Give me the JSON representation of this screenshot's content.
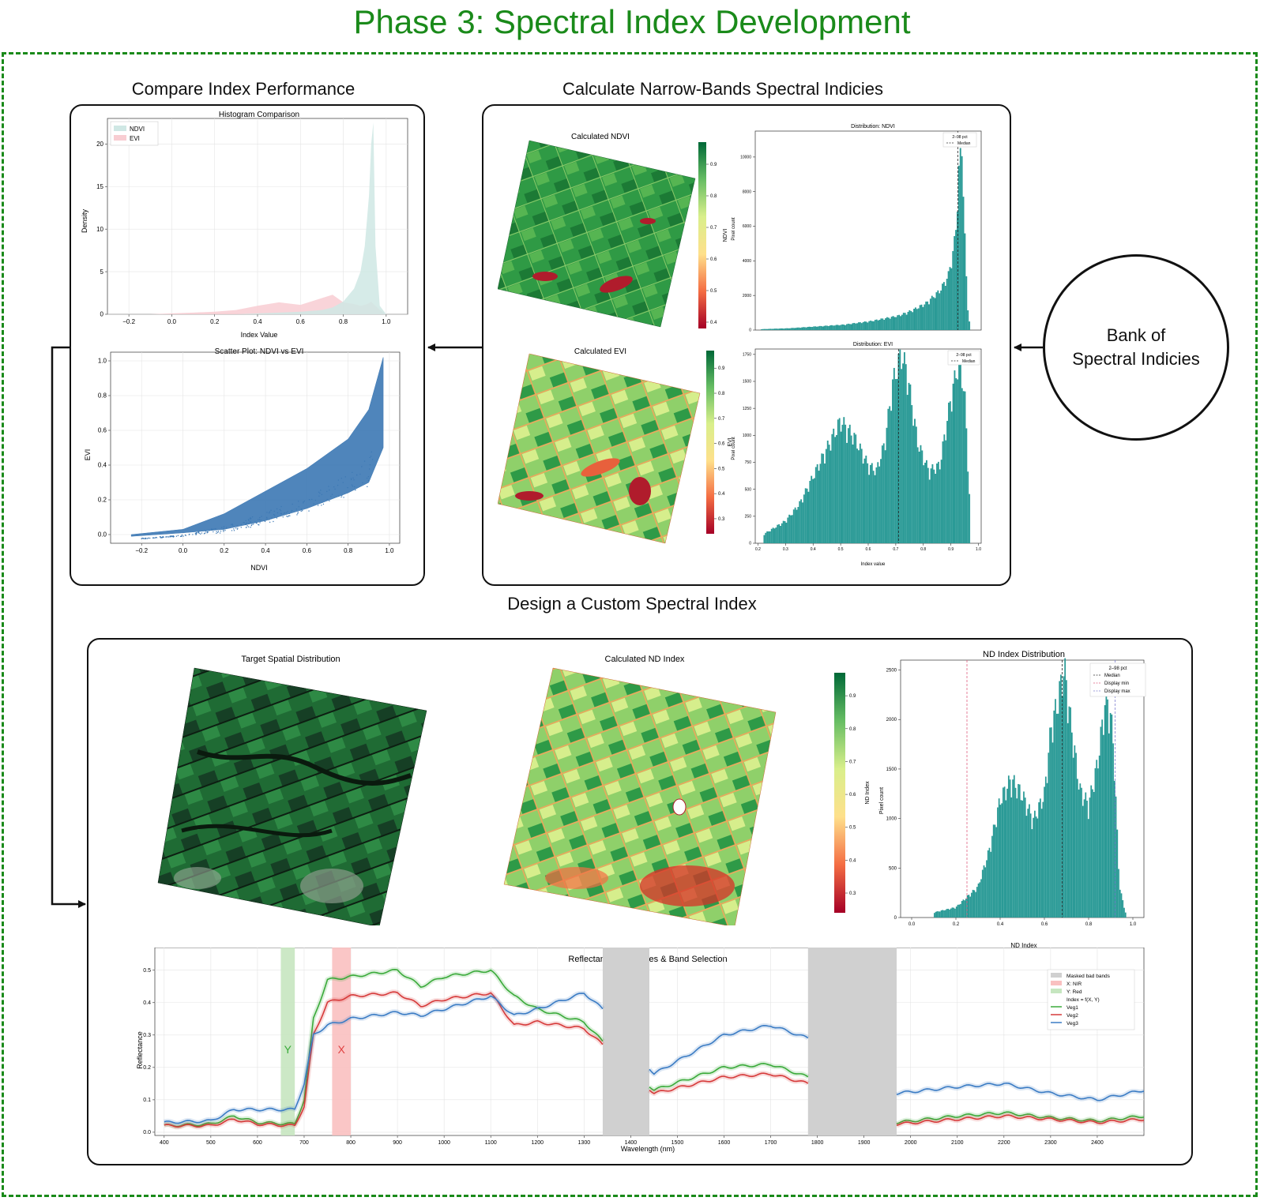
{
  "title": "Phase 3: Spectral Index Development",
  "sections": {
    "compare": "Compare Index Performance",
    "calculate": "Calculate Narrow-Bands Spectral Indicies",
    "design": "Design a Custom Spectral Index"
  },
  "bank": {
    "line1": "Bank of",
    "line2": "Spectral Indicies"
  },
  "colors": {
    "frame": "#1a8a1a",
    "teal": "#2a9a96",
    "scatter": "#3c78b4",
    "ndvi_fill": "#cfe7e4",
    "evi_fill": "#f8cdd2"
  },
  "hist_compare": {
    "title": "Histogram Comparison",
    "xlabel": "Index Value",
    "ylabel": "Density",
    "xticks": [
      "−0.2",
      "0.0",
      "0.2",
      "0.4",
      "0.6",
      "0.8",
      "1.0"
    ],
    "yticks": [
      "0",
      "5",
      "10",
      "15",
      "20"
    ],
    "legend": [
      "NDVI",
      "EVI"
    ]
  },
  "scatter": {
    "title": "Scatter Plot: NDVI vs EVI",
    "xlabel": "NDVI",
    "ylabel": "EVI",
    "xticks": [
      "−0.2",
      "0.0",
      "0.2",
      "0.4",
      "0.6",
      "0.8",
      "1.0"
    ],
    "yticks": [
      "0.0",
      "0.2",
      "0.4",
      "0.6",
      "0.8",
      "1.0"
    ]
  },
  "ndvi_map": {
    "title": "Calculated NDVI",
    "cbar_label": "NDVI",
    "cbar_ticks": [
      "0.9",
      "0.8",
      "0.7",
      "0.6",
      "0.5",
      "0.4"
    ]
  },
  "evi_map": {
    "title": "Calculated EVI",
    "cbar_label": "EVI",
    "cbar_ticks": [
      "0.9",
      "0.8",
      "0.7",
      "0.6",
      "0.5",
      "0.4",
      "0.3"
    ]
  },
  "ndvi_dist": {
    "title": "Distribution: NDVI",
    "ylabel": "Pixel count",
    "yticks": [
      "0",
      "2000",
      "4000",
      "6000",
      "8000",
      "10000"
    ],
    "legend_title": "2–98 pct",
    "legend_median": "Median"
  },
  "evi_dist": {
    "title": "Distribution: EVI",
    "xlabel": "Index value",
    "ylabel": "Pixel count",
    "xticks": [
      "0.2",
      "0.3",
      "0.4",
      "0.5",
      "0.6",
      "0.7",
      "0.8",
      "0.9",
      "1.0"
    ],
    "yticks": [
      "0",
      "250",
      "500",
      "750",
      "1000",
      "1250",
      "1500",
      "1750"
    ],
    "legend_title": "2–98 pct",
    "legend_median": "Median"
  },
  "target_map": {
    "title": "Target Spatial Distribution"
  },
  "nd_map": {
    "title": "Calculated ND Index",
    "cbar_label": "ND Index",
    "cbar_ticks": [
      "0.9",
      "0.8",
      "0.7",
      "0.6",
      "0.5",
      "0.4",
      "0.3"
    ]
  },
  "nd_dist": {
    "title": "ND Index Distribution",
    "xlabel": "ND Index",
    "ylabel": "Pixel count",
    "xticks": [
      "0.0",
      "0.2",
      "0.4",
      "0.6",
      "0.8",
      "1.0"
    ],
    "yticks": [
      "0",
      "500",
      "1000",
      "1500",
      "2000",
      "2500"
    ],
    "legend_title": "2–98 pct",
    "legend": [
      "Median",
      "Display min",
      "Display max"
    ]
  },
  "reflectance": {
    "title": "Reflectance Signatures & Band Selection",
    "xlabel": "Wavelength (nm)",
    "ylabel": "Reflectance",
    "xticks": [
      "400",
      "500",
      "600",
      "700",
      "800",
      "900",
      "1000",
      "1100",
      "1200",
      "1300",
      "1400",
      "1500",
      "1600",
      "1700",
      "1800",
      "1900",
      "2000",
      "2100",
      "2200",
      "2300",
      "2400"
    ],
    "yticks": [
      "0.0",
      "0.1",
      "0.2",
      "0.3",
      "0.4",
      "0.5"
    ],
    "band_y": "Y",
    "band_x": "X",
    "legend": [
      "Masked bad bands",
      "X: NIR",
      "Y: Red",
      "Index = f(X, Y)",
      "Veg1",
      "Veg2",
      "Veg3"
    ]
  },
  "chart_data": [
    {
      "type": "area",
      "title": "Histogram Comparison",
      "xlabel": "Index Value",
      "ylabel": "Density",
      "xlim": [
        -0.3,
        1.1
      ],
      "ylim": [
        0,
        23
      ],
      "x": [
        -0.1,
        0.0,
        0.1,
        0.2,
        0.3,
        0.4,
        0.5,
        0.6,
        0.7,
        0.75,
        0.8,
        0.85,
        0.88,
        0.9,
        0.92,
        0.93,
        0.94,
        0.95,
        0.97,
        1.0
      ],
      "series": [
        {
          "name": "NDVI",
          "values": [
            0,
            0,
            0,
            0,
            0,
            0.1,
            0.2,
            0.3,
            0.5,
            0.8,
            1.5,
            3,
            5,
            8,
            14,
            20,
            22.5,
            8,
            1,
            0
          ]
        },
        {
          "name": "EVI",
          "values": [
            0,
            0.1,
            0.2,
            0.3,
            0.5,
            1.0,
            1.4,
            1.1,
            1.9,
            2.3,
            1.4,
            1.2,
            1.0,
            1.1,
            1.3,
            1.5,
            1.2,
            1.0,
            0.5,
            0
          ]
        }
      ]
    },
    {
      "type": "scatter",
      "title": "Scatter Plot: NDVI vs EVI",
      "xlabel": "NDVI",
      "ylabel": "EVI",
      "xlim": [
        -0.35,
        1.05
      ],
      "ylim": [
        -0.05,
        1.05
      ],
      "upper_envelope": {
        "x": [
          -0.25,
          0.0,
          0.2,
          0.4,
          0.6,
          0.8,
          0.9,
          0.97
        ],
        "y": [
          0.0,
          0.03,
          0.12,
          0.25,
          0.38,
          0.55,
          0.72,
          1.02
        ]
      },
      "lower_envelope": {
        "x": [
          -0.25,
          0.0,
          0.2,
          0.4,
          0.6,
          0.8,
          0.9,
          0.97
        ],
        "y": [
          -0.01,
          0.01,
          0.03,
          0.08,
          0.15,
          0.24,
          0.3,
          0.5
        ]
      }
    },
    {
      "type": "bar",
      "title": "Distribution: NDVI",
      "ylabel": "Pixel count",
      "xlim": [
        0.18,
        1.0
      ],
      "ylim": [
        0,
        11500
      ],
      "median": 0.915,
      "x": [
        0.2,
        0.3,
        0.4,
        0.5,
        0.6,
        0.7,
        0.75,
        0.8,
        0.85,
        0.88,
        0.9,
        0.91,
        0.92,
        0.93,
        0.94,
        0.95,
        0.96
      ],
      "values": [
        50,
        100,
        200,
        300,
        500,
        800,
        1100,
        1500,
        2200,
        3000,
        4500,
        6000,
        9000,
        10500,
        5500,
        1500,
        100
      ]
    },
    {
      "type": "bar",
      "title": "Distribution: EVI",
      "xlabel": "Index value",
      "ylabel": "Pixel count",
      "xlim": [
        0.19,
        1.01
      ],
      "ylim": [
        0,
        1800
      ],
      "median": 0.71,
      "x": [
        0.22,
        0.3,
        0.35,
        0.4,
        0.45,
        0.5,
        0.55,
        0.6,
        0.63,
        0.66,
        0.69,
        0.72,
        0.74,
        0.78,
        0.82,
        0.86,
        0.9,
        0.93,
        0.95,
        0.97
      ],
      "values": [
        80,
        200,
        350,
        600,
        850,
        1100,
        950,
        700,
        650,
        900,
        1450,
        1700,
        1550,
        900,
        650,
        700,
        1300,
        1650,
        1350,
        300
      ]
    },
    {
      "type": "bar",
      "title": "ND Index Distribution",
      "xlabel": "ND Index",
      "ylabel": "Pixel count",
      "xlim": [
        -0.05,
        1.05
      ],
      "ylim": [
        0,
        2600
      ],
      "median": 0.68,
      "display_min": 0.25,
      "display_max": 0.92,
      "x": [
        0.1,
        0.2,
        0.3,
        0.35,
        0.4,
        0.45,
        0.5,
        0.55,
        0.6,
        0.63,
        0.66,
        0.69,
        0.72,
        0.76,
        0.8,
        0.84,
        0.88,
        0.91,
        0.94,
        0.97
      ],
      "values": [
        50,
        100,
        300,
        650,
        1150,
        1350,
        1200,
        950,
        1200,
        1850,
        2100,
        2450,
        1900,
        1250,
        1100,
        1500,
        2200,
        1800,
        300,
        20
      ]
    },
    {
      "type": "line",
      "title": "Reflectance Signatures & Band Selection",
      "xlabel": "Wavelength (nm)",
      "ylabel": "Reflectance",
      "xlim": [
        380,
        2500
      ],
      "ylim": [
        -0.01,
        0.57
      ],
      "masked_bands": [
        [
          1340,
          1440
        ],
        [
          1780,
          1970
        ]
      ],
      "band_x_range": [
        760,
        800
      ],
      "band_y_range": [
        650,
        680
      ],
      "series": [
        {
          "name": "Veg1",
          "color": "#3aaa3a",
          "x": [
            400,
            500,
            550,
            600,
            680,
            700,
            720,
            750,
            800,
            900,
            950,
            1000,
            1100,
            1150,
            1200,
            1300,
            1340,
            1450,
            1600,
            1700,
            1780,
            1970,
            2100,
            2200,
            2300,
            2400,
            2500
          ],
          "y": [
            0.02,
            0.025,
            0.05,
            0.03,
            0.025,
            0.1,
            0.35,
            0.47,
            0.48,
            0.5,
            0.45,
            0.48,
            0.5,
            0.42,
            0.38,
            0.34,
            0.28,
            0.13,
            0.2,
            0.21,
            0.17,
            0.03,
            0.05,
            0.06,
            0.045,
            0.035,
            0.05
          ]
        },
        {
          "name": "Veg2",
          "color": "#d63a3a",
          "x": [
            400,
            500,
            550,
            600,
            680,
            700,
            720,
            750,
            800,
            900,
            950,
            1000,
            1100,
            1150,
            1200,
            1300,
            1340,
            1450,
            1600,
            1700,
            1780,
            1970,
            2100,
            2200,
            2300,
            2400,
            2500
          ],
          "y": [
            0.02,
            0.02,
            0.04,
            0.025,
            0.02,
            0.08,
            0.3,
            0.4,
            0.42,
            0.43,
            0.39,
            0.41,
            0.43,
            0.33,
            0.34,
            0.32,
            0.27,
            0.12,
            0.17,
            0.18,
            0.15,
            0.025,
            0.04,
            0.05,
            0.04,
            0.03,
            0.04
          ]
        },
        {
          "name": "Veg3",
          "color": "#3b7cc4",
          "x": [
            400,
            500,
            550,
            600,
            680,
            700,
            720,
            750,
            800,
            900,
            950,
            1000,
            1100,
            1150,
            1200,
            1300,
            1340,
            1450,
            1600,
            1700,
            1780,
            1970,
            2100,
            2200,
            2300,
            2400,
            2500
          ],
          "y": [
            0.03,
            0.035,
            0.07,
            0.07,
            0.07,
            0.15,
            0.3,
            0.33,
            0.35,
            0.37,
            0.36,
            0.38,
            0.42,
            0.36,
            0.38,
            0.43,
            0.38,
            0.18,
            0.3,
            0.33,
            0.29,
            0.12,
            0.14,
            0.15,
            0.12,
            0.1,
            0.13
          ]
        }
      ]
    }
  ]
}
